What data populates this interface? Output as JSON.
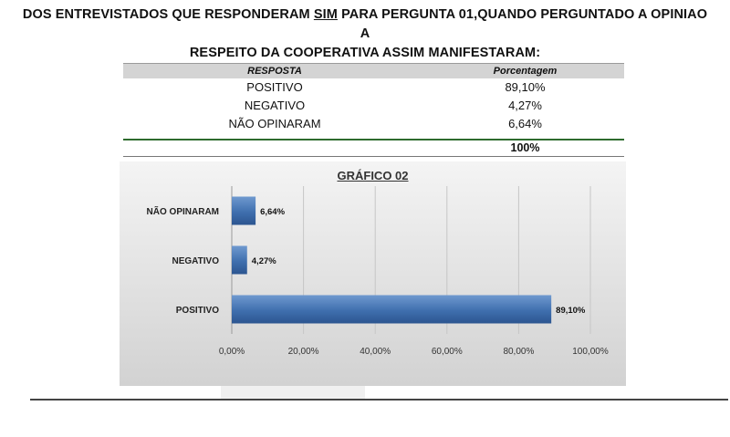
{
  "heading": {
    "line1_pre": "DOS ENTREVISTADOS QUE RESPONDERAM ",
    "line1_sim": "SIM",
    "line1_post": " PARA PERGUNTA 01,QUANDO PERGUNTADO A OPINIAO A",
    "line2": "RESPEITO DA COOPERATIVA ASSIM MANIFESTARAM:"
  },
  "table": {
    "col_resposta": "RESPOSTA",
    "col_porcentagem": "Porcentagem",
    "rows": [
      {
        "resposta": "POSITIVO",
        "porcentagem": "89,10%"
      },
      {
        "resposta": "NEGATIVO",
        "porcentagem": "4,27%"
      },
      {
        "resposta": "NÃO OPINARAM",
        "porcentagem": "6,64%"
      }
    ],
    "total": "100%"
  },
  "chart_data": {
    "type": "bar",
    "orientation": "horizontal",
    "title": "GRÁFICO 02",
    "categories": [
      "NÃO OPINARAM",
      "NEGATIVO",
      "POSITIVO"
    ],
    "values": [
      6.64,
      4.27,
      89.1
    ],
    "data_labels": [
      "6,64%",
      "4,27%",
      "89,10%"
    ],
    "xlim": [
      0,
      100
    ],
    "x_ticks": [
      "0,00%",
      "20,00%",
      "40,00%",
      "60,00%",
      "80,00%",
      "100,00%"
    ],
    "grid": true,
    "legend": "none",
    "bar_color": "#3f6fae"
  }
}
